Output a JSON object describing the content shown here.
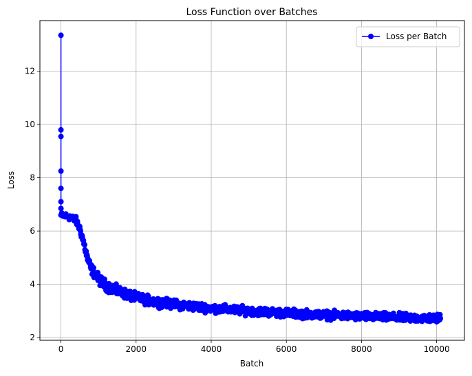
{
  "chart_data": {
    "type": "line",
    "title": "Loss Function over Batches",
    "xlabel": "Batch",
    "ylabel": "Loss",
    "xlim": [
      -560,
      10740
    ],
    "ylim": [
      1.9,
      13.9
    ],
    "xticks": [
      0,
      2000,
      4000,
      6000,
      8000,
      10000
    ],
    "xtick_labels": [
      "0",
      "2000",
      "4000",
      "6000",
      "8000",
      "10000"
    ],
    "yticks": [
      2,
      4,
      6,
      8,
      10,
      12
    ],
    "ytick_labels": [
      "2",
      "4",
      "6",
      "8",
      "10",
      "12"
    ],
    "grid": true,
    "legend_position": "top-right",
    "series": [
      {
        "name": "Loss per Batch",
        "color": "#0000ff",
        "marker": "circle",
        "initial_points": [
          {
            "x": 0,
            "y": 13.35
          },
          {
            "x": 0,
            "y": 9.8
          },
          {
            "x": 0,
            "y": 9.55
          },
          {
            "x": 0,
            "y": 8.25
          },
          {
            "x": 0,
            "y": 7.6
          },
          {
            "x": 0,
            "y": 7.1
          },
          {
            "x": 0,
            "y": 6.85
          },
          {
            "x": 0,
            "y": 6.6
          }
        ],
        "trend": [
          {
            "x": 0,
            "y": 6.6
          },
          {
            "x": 200,
            "y": 6.55
          },
          {
            "x": 400,
            "y": 6.4
          },
          {
            "x": 500,
            "y": 6.1
          },
          {
            "x": 600,
            "y": 5.6
          },
          {
            "x": 700,
            "y": 5.0
          },
          {
            "x": 800,
            "y": 4.6
          },
          {
            "x": 1000,
            "y": 4.2
          },
          {
            "x": 1200,
            "y": 3.95
          },
          {
            "x": 1500,
            "y": 3.75
          },
          {
            "x": 2000,
            "y": 3.5
          },
          {
            "x": 2500,
            "y": 3.35
          },
          {
            "x": 3000,
            "y": 3.25
          },
          {
            "x": 4000,
            "y": 3.1
          },
          {
            "x": 5000,
            "y": 3.0
          },
          {
            "x": 6000,
            "y": 2.92
          },
          {
            "x": 7000,
            "y": 2.85
          },
          {
            "x": 8000,
            "y": 2.8
          },
          {
            "x": 9000,
            "y": 2.75
          },
          {
            "x": 10100,
            "y": 2.72
          }
        ],
        "spread": [
          {
            "x": 0,
            "y": 0.15
          },
          {
            "x": 500,
            "y": 0.2
          },
          {
            "x": 1000,
            "y": 0.28
          },
          {
            "x": 2000,
            "y": 0.25
          },
          {
            "x": 4000,
            "y": 0.22
          },
          {
            "x": 6000,
            "y": 0.22
          },
          {
            "x": 8000,
            "y": 0.22
          },
          {
            "x": 10100,
            "y": 0.22
          }
        ],
        "last_batch": 10100
      }
    ]
  }
}
